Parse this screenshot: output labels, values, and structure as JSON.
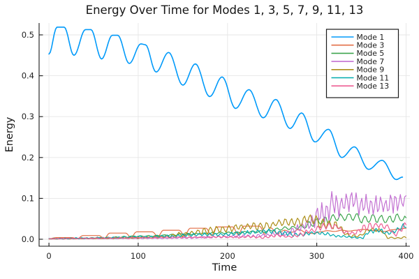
{
  "figure": {
    "background": "#ffffff"
  },
  "chart_data": {
    "type": "line",
    "title": "Energy Over Time for Modes 1, 3, 5, 7, 9, 11, 13",
    "xlabel": "Time",
    "ylabel": "Energy",
    "xlim": [
      -11,
      404.3
    ],
    "ylim": [
      -0.0171,
      0.529
    ],
    "x_ticks": [
      0,
      100,
      200,
      300,
      400
    ],
    "x_tick_labels": [
      "0",
      "100",
      "200",
      "300",
      "400"
    ],
    "y_ticks": [
      0.0,
      0.1,
      0.2,
      0.3,
      0.4,
      0.5
    ],
    "y_tick_labels": [
      "0.0",
      "0.1",
      "0.2",
      "0.3",
      "0.4",
      "0.5"
    ],
    "grid": true,
    "grid_color": "#e6e6e6",
    "axis_color": "#1a1a1a",
    "tick_label_color": "#1f1f1f",
    "legend": {
      "position": "top-right",
      "border_color": "#1a1a1a",
      "background": "#ffffff"
    },
    "series": [
      {
        "name": "Mode 1",
        "color": "#009AFA",
        "width": 1.6,
        "extrema": [
          [
            0,
            0.453
          ],
          [
            9,
            0.519
          ],
          [
            17,
            0.519
          ],
          [
            28,
            0.45
          ],
          [
            41,
            0.513
          ],
          [
            47,
            0.513
          ],
          [
            59,
            0.441
          ],
          [
            71,
            0.499
          ],
          [
            77,
            0.499
          ],
          [
            90,
            0.43
          ],
          [
            103,
            0.478
          ],
          [
            108,
            0.476
          ],
          [
            120,
            0.409
          ],
          [
            134,
            0.457
          ],
          [
            150,
            0.377
          ],
          [
            164,
            0.429
          ],
          [
            180,
            0.349
          ],
          [
            194,
            0.397
          ],
          [
            209,
            0.32
          ],
          [
            224,
            0.366
          ],
          [
            240,
            0.297
          ],
          [
            254,
            0.342
          ],
          [
            270,
            0.271
          ],
          [
            283,
            0.309
          ],
          [
            298,
            0.238
          ],
          [
            313,
            0.269
          ],
          [
            328,
            0.2
          ],
          [
            342,
            0.226
          ],
          [
            358,
            0.171
          ],
          [
            373,
            0.193
          ],
          [
            389,
            0.146
          ],
          [
            396,
            0.152
          ]
        ]
      },
      {
        "name": "Mode 3",
        "color": "#E36F47",
        "width": 1.2,
        "extrema": [
          [
            0,
            0.001
          ],
          [
            8,
            0.004
          ],
          [
            26,
            0.004
          ],
          [
            32,
            0.001
          ],
          [
            38,
            0.009
          ],
          [
            56,
            0.009
          ],
          [
            62,
            0.002
          ],
          [
            68,
            0.015
          ],
          [
            86,
            0.015
          ],
          [
            92,
            0.004
          ],
          [
            98,
            0.018
          ],
          [
            116,
            0.018
          ],
          [
            122,
            0.006
          ],
          [
            128,
            0.022
          ],
          [
            146,
            0.022
          ],
          [
            152,
            0.008
          ],
          [
            158,
            0.027
          ],
          [
            176,
            0.027
          ],
          [
            182,
            0.009
          ],
          [
            188,
            0.03
          ],
          [
            206,
            0.03
          ],
          [
            212,
            0.011
          ],
          [
            218,
            0.032
          ],
          [
            236,
            0.032
          ],
          [
            242,
            0.012
          ],
          [
            248,
            0.028
          ],
          [
            256,
            0.014
          ],
          [
            264,
            0.022
          ],
          [
            272,
            0.017
          ],
          [
            280,
            0.024
          ],
          [
            288,
            0.016
          ],
          [
            296,
            0.014
          ],
          [
            304,
            0.018
          ],
          [
            312,
            0.021
          ],
          [
            320,
            0.019
          ],
          [
            328,
            0.022
          ],
          [
            336,
            0.02
          ],
          [
            344,
            0.022
          ],
          [
            352,
            0.024
          ],
          [
            360,
            0.022
          ],
          [
            368,
            0.021
          ],
          [
            376,
            0.019
          ],
          [
            384,
            0.023
          ],
          [
            392,
            0.025
          ],
          [
            400,
            0.027
          ]
        ]
      },
      {
        "name": "Mode 5",
        "color": "#3DA44E",
        "width": 1.2,
        "period": 9,
        "seed": 5,
        "envelope": [
          [
            0,
            0.0,
            0.001
          ],
          [
            60,
            0.002,
            0.005
          ],
          [
            120,
            0.007,
            0.011
          ],
          [
            180,
            0.012,
            0.017
          ],
          [
            210,
            0.014,
            0.019
          ],
          [
            240,
            0.016,
            0.022
          ],
          [
            255,
            0.02,
            0.028
          ],
          [
            270,
            0.022,
            0.032
          ],
          [
            285,
            0.024,
            0.036
          ],
          [
            295,
            0.028,
            0.048
          ],
          [
            310,
            0.035,
            0.058
          ],
          [
            330,
            0.04,
            0.066
          ],
          [
            350,
            0.038,
            0.064
          ],
          [
            370,
            0.036,
            0.06
          ],
          [
            385,
            0.038,
            0.062
          ],
          [
            400,
            0.036,
            0.06
          ]
        ]
      },
      {
        "name": "Mode 7",
        "color": "#C371D2",
        "width": 1.2,
        "period": 5.5,
        "seed": 7,
        "envelope": [
          [
            0,
            0.0,
            0.001
          ],
          [
            100,
            0.001,
            0.003
          ],
          [
            150,
            0.001,
            0.005
          ],
          [
            200,
            0.003,
            0.01
          ],
          [
            240,
            0.004,
            0.014
          ],
          [
            265,
            0.006,
            0.02
          ],
          [
            285,
            0.015,
            0.045
          ],
          [
            295,
            0.025,
            0.07
          ],
          [
            305,
            0.03,
            0.09
          ],
          [
            315,
            0.045,
            0.12
          ],
          [
            325,
            0.055,
            0.115
          ],
          [
            340,
            0.06,
            0.12
          ],
          [
            355,
            0.055,
            0.11
          ],
          [
            365,
            0.06,
            0.122
          ],
          [
            380,
            0.058,
            0.112
          ],
          [
            390,
            0.06,
            0.12
          ],
          [
            400,
            0.07,
            0.115
          ]
        ]
      },
      {
        "name": "Mode 9",
        "color": "#AC8E18",
        "width": 1.2,
        "period": 7,
        "seed": 9,
        "envelope": [
          [
            0,
            0.0,
            0.001
          ],
          [
            60,
            0.001,
            0.003
          ],
          [
            100,
            0.002,
            0.006
          ],
          [
            130,
            0.004,
            0.01
          ],
          [
            150,
            0.006,
            0.018
          ],
          [
            170,
            0.01,
            0.027
          ],
          [
            185,
            0.012,
            0.033
          ],
          [
            200,
            0.015,
            0.038
          ],
          [
            215,
            0.018,
            0.04
          ],
          [
            230,
            0.02,
            0.045
          ],
          [
            245,
            0.022,
            0.042
          ],
          [
            255,
            0.028,
            0.053
          ],
          [
            270,
            0.03,
            0.05
          ],
          [
            285,
            0.03,
            0.06
          ],
          [
            300,
            0.032,
            0.065
          ],
          [
            312,
            0.02,
            0.05
          ],
          [
            325,
            0.015,
            0.045
          ],
          [
            336,
            0.004,
            0.014
          ],
          [
            350,
            0.005,
            0.012
          ],
          [
            357,
            0.018,
            0.028
          ],
          [
            373,
            0.016,
            0.026
          ],
          [
            379,
            0.001,
            0.006
          ],
          [
            392,
            0.001,
            0.005
          ],
          [
            400,
            0.002,
            0.008
          ]
        ]
      },
      {
        "name": "Mode 11",
        "color": "#00AAAE",
        "width": 1.2,
        "period": 6,
        "seed": 11,
        "envelope": [
          [
            0,
            0.0,
            0.002
          ],
          [
            50,
            0.001,
            0.005
          ],
          [
            100,
            0.003,
            0.008
          ],
          [
            140,
            0.004,
            0.012
          ],
          [
            170,
            0.006,
            0.016
          ],
          [
            200,
            0.008,
            0.018
          ],
          [
            225,
            0.01,
            0.022
          ],
          [
            250,
            0.012,
            0.026
          ],
          [
            265,
            0.008,
            0.02
          ],
          [
            280,
            0.006,
            0.016
          ],
          [
            295,
            0.01,
            0.02
          ],
          [
            310,
            0.008,
            0.018
          ],
          [
            325,
            0.004,
            0.012
          ],
          [
            340,
            0.002,
            0.008
          ],
          [
            352,
            0.001,
            0.005
          ],
          [
            358,
            0.014,
            0.026
          ],
          [
            372,
            0.016,
            0.028
          ],
          [
            382,
            0.008,
            0.02
          ],
          [
            390,
            0.018,
            0.032
          ],
          [
            396,
            0.022,
            0.04
          ],
          [
            400,
            0.024,
            0.042
          ]
        ]
      },
      {
        "name": "Mode 13",
        "color": "#ED5E93",
        "width": 1.2,
        "period": 6.5,
        "seed": 13,
        "envelope": [
          [
            0,
            0.0,
            0.002
          ],
          [
            60,
            0.001,
            0.004
          ],
          [
            120,
            0.002,
            0.006
          ],
          [
            180,
            0.003,
            0.008
          ],
          [
            210,
            0.003,
            0.009
          ],
          [
            240,
            0.002,
            0.008
          ],
          [
            255,
            0.006,
            0.014
          ],
          [
            268,
            0.002,
            0.008
          ],
          [
            280,
            0.006,
            0.018
          ],
          [
            292,
            0.012,
            0.028
          ],
          [
            302,
            0.018,
            0.036
          ],
          [
            312,
            0.024,
            0.042
          ],
          [
            322,
            0.026,
            0.042
          ],
          [
            330,
            0.012,
            0.024
          ],
          [
            342,
            0.008,
            0.018
          ],
          [
            352,
            0.02,
            0.038
          ],
          [
            362,
            0.026,
            0.044
          ],
          [
            372,
            0.026,
            0.042
          ],
          [
            380,
            0.022,
            0.036
          ],
          [
            386,
            0.006,
            0.016
          ],
          [
            392,
            0.008,
            0.028
          ],
          [
            397,
            0.02,
            0.04
          ],
          [
            400,
            0.026,
            0.042
          ]
        ]
      }
    ]
  }
}
